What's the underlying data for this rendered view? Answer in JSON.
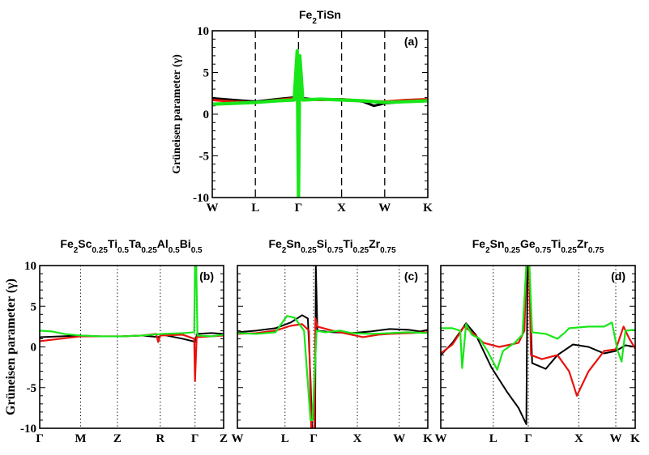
{
  "colors": {
    "black": "#000000",
    "red": "#e8120c",
    "green": "#19e619"
  },
  "chart_data": [
    {
      "type": "line",
      "panel": "(a)",
      "title": "Fe2TiSn",
      "title_parts": [
        [
          "Fe",
          ""
        ],
        [
          "2",
          "sub"
        ],
        [
          "TiSn",
          ""
        ]
      ],
      "ylabel": "Grüneisen parameter (γ)",
      "ylim": [
        -10,
        10
      ],
      "yticks": [
        "10",
        "5",
        "0",
        "-5",
        "-10"
      ],
      "xlim": [
        0,
        5
      ],
      "xticks": [
        {
          "label": "W",
          "x": 0
        },
        {
          "label": "L",
          "x": 1
        },
        {
          "label": "Γ",
          "x": 2
        },
        {
          "label": "X",
          "x": 3
        },
        {
          "label": "W",
          "x": 4
        },
        {
          "label": "K",
          "x": 5
        }
      ],
      "separators": [
        1,
        2,
        3,
        4
      ],
      "separator_style": "dashed",
      "series": [
        {
          "name": "black",
          "points": [
            [
              0,
              1.9
            ],
            [
              0.5,
              1.7
            ],
            [
              1,
              1.5
            ],
            [
              1.5,
              1.8
            ],
            [
              1.9,
              2.0
            ],
            [
              1.97,
              2.5
            ],
            [
              2.0,
              -10
            ],
            [
              2.03,
              4.6
            ],
            [
              2.1,
              1.9
            ],
            [
              2.5,
              1.7
            ],
            [
              3,
              1.8
            ],
            [
              3.5,
              1.5
            ],
            [
              3.75,
              1.0
            ],
            [
              4,
              1.3
            ],
            [
              4.5,
              1.5
            ],
            [
              5,
              1.6
            ]
          ]
        },
        {
          "name": "red",
          "points": [
            [
              0,
              1.7
            ],
            [
              0.5,
              1.5
            ],
            [
              1,
              1.4
            ],
            [
              1.5,
              1.7
            ],
            [
              1.9,
              1.9
            ],
            [
              2.0,
              2.0
            ],
            [
              2.1,
              1.8
            ],
            [
              2.5,
              1.7
            ],
            [
              3,
              1.8
            ],
            [
              3.5,
              1.6
            ],
            [
              4,
              1.5
            ],
            [
              4.5,
              1.7
            ],
            [
              5,
              1.8
            ]
          ]
        },
        {
          "name": "green",
          "points": [
            [
              0,
              1.2
            ],
            [
              0.5,
              1.3
            ],
            [
              1,
              1.4
            ],
            [
              1.5,
              1.6
            ],
            [
              1.9,
              1.7
            ],
            [
              1.97,
              7.6
            ],
            [
              2.0,
              -10
            ],
            [
              2.03,
              7.0
            ],
            [
              2.1,
              1.7
            ],
            [
              2.5,
              1.8
            ],
            [
              3,
              1.7
            ],
            [
              3.5,
              1.6
            ],
            [
              4,
              1.4
            ],
            [
              4.5,
              1.5
            ],
            [
              5,
              1.6
            ]
          ]
        }
      ]
    },
    {
      "type": "line",
      "panel": "(b)",
      "title": "Fe2Sc0.25Ti0.5Ta0.25Al0.5Bi0.5",
      "title_parts": [
        [
          "Fe",
          ""
        ],
        [
          "2",
          "sub"
        ],
        [
          "Sc",
          ""
        ],
        [
          "0.25",
          "sub"
        ],
        [
          "Ti",
          ""
        ],
        [
          "0.5",
          "sub"
        ],
        [
          "Ta",
          ""
        ],
        [
          "0.25",
          "sub"
        ],
        [
          "Al",
          ""
        ],
        [
          "0.5",
          "sub"
        ],
        [
          "Bi",
          ""
        ],
        [
          "0.5",
          "sub"
        ]
      ],
      "ylabel": "Grüneisen parameter (γ)",
      "ylim": [
        -10,
        10
      ],
      "yticks": [
        "10",
        "5",
        "0",
        "-5",
        "-10"
      ],
      "xlim": [
        0,
        4.5
      ],
      "xticks": [
        {
          "label": "Γ",
          "x": 0
        },
        {
          "label": "M",
          "x": 1
        },
        {
          "label": "Z",
          "x": 1.9
        },
        {
          "label": "R",
          "x": 2.95
        },
        {
          "label": "Γ",
          "x": 3.8
        },
        {
          "label": "Z",
          "x": 4.5
        }
      ],
      "separators": [
        1,
        1.9,
        2.95,
        3.8
      ],
      "separator_style": "dotted",
      "series": [
        {
          "name": "black",
          "points": [
            [
              0,
              1.2
            ],
            [
              0.5,
              1.3
            ],
            [
              1,
              1.4
            ],
            [
              1.5,
              1.3
            ],
            [
              2,
              1.3
            ],
            [
              2.5,
              1.4
            ],
            [
              2.9,
              1.2
            ],
            [
              3.0,
              1.5
            ],
            [
              3.5,
              1.0
            ],
            [
              3.75,
              0.7
            ],
            [
              3.8,
              0.6
            ],
            [
              3.85,
              1.6
            ],
            [
              4.2,
              1.7
            ],
            [
              4.5,
              1.6
            ]
          ]
        },
        {
          "name": "red",
          "points": [
            [
              0,
              0.7
            ],
            [
              0.5,
              1.0
            ],
            [
              1,
              1.3
            ],
            [
              1.5,
              1.3
            ],
            [
              2,
              1.3
            ],
            [
              2.5,
              1.4
            ],
            [
              2.85,
              1.6
            ],
            [
              2.9,
              0.6
            ],
            [
              2.95,
              1.4
            ],
            [
              3.5,
              1.5
            ],
            [
              3.78,
              1.0
            ],
            [
              3.8,
              -4.2
            ],
            [
              3.84,
              1.2
            ],
            [
              4.2,
              1.3
            ],
            [
              4.5,
              1.4
            ]
          ]
        },
        {
          "name": "green",
          "points": [
            [
              0,
              2.0
            ],
            [
              0.3,
              1.9
            ],
            [
              0.6,
              1.6
            ],
            [
              1,
              1.4
            ],
            [
              1.5,
              1.3
            ],
            [
              2,
              1.3
            ],
            [
              2.5,
              1.4
            ],
            [
              3,
              1.6
            ],
            [
              3.5,
              1.7
            ],
            [
              3.78,
              1.8
            ],
            [
              3.8,
              10
            ],
            [
              3.83,
              10
            ],
            [
              3.86,
              1.4
            ],
            [
              4.2,
              1.3
            ],
            [
              4.5,
              1.5
            ]
          ]
        }
      ]
    },
    {
      "type": "line",
      "panel": "(c)",
      "title": "Fe2Sn0.25Si0.75Ti0.25Zr0.75",
      "title_parts": [
        [
          "Fe",
          ""
        ],
        [
          "2",
          "sub"
        ],
        [
          "Sn",
          ""
        ],
        [
          "0.25",
          "sub"
        ],
        [
          "Si",
          ""
        ],
        [
          "0.75",
          "sub"
        ],
        [
          "Ti",
          ""
        ],
        [
          "0.25",
          "sub"
        ],
        [
          "Zr",
          ""
        ],
        [
          "0.75",
          "sub"
        ]
      ],
      "ylabel": "",
      "ylim": [
        -10,
        10
      ],
      "yticks": [],
      "xlim": [
        0,
        5
      ],
      "xticks": [
        {
          "label": "W",
          "x": 0
        },
        {
          "label": "L",
          "x": 1.25
        },
        {
          "label": "Γ",
          "x": 2.0
        },
        {
          "label": "X",
          "x": 3.15
        },
        {
          "label": "W",
          "x": 4.25
        },
        {
          "label": "K",
          "x": 5
        }
      ],
      "separators": [
        1.25,
        2.0,
        3.15,
        4.25
      ],
      "separator_style": "dotted",
      "series": [
        {
          "name": "black",
          "points": [
            [
              0,
              1.8
            ],
            [
              0.5,
              2.0
            ],
            [
              1,
              2.3
            ],
            [
              1.4,
              3.0
            ],
            [
              1.7,
              3.9
            ],
            [
              1.85,
              3.5
            ],
            [
              1.92,
              -4
            ],
            [
              1.96,
              -10
            ],
            [
              2.04,
              -10
            ],
            [
              2.06,
              10
            ],
            [
              2.1,
              2.0
            ],
            [
              2.5,
              1.8
            ],
            [
              3,
              1.7
            ],
            [
              3.5,
              1.9
            ],
            [
              4,
              2.2
            ],
            [
              4.5,
              2.1
            ],
            [
              4.8,
              1.9
            ],
            [
              5,
              2.1
            ]
          ]
        },
        {
          "name": "red",
          "points": [
            [
              0,
              1.6
            ],
            [
              0.5,
              1.7
            ],
            [
              1,
              2.0
            ],
            [
              1.4,
              2.6
            ],
            [
              1.7,
              2.8
            ],
            [
              1.88,
              2.0
            ],
            [
              1.94,
              -10
            ],
            [
              2.02,
              -10
            ],
            [
              2.05,
              3.5
            ],
            [
              2.1,
              2.5
            ],
            [
              2.5,
              2.0
            ],
            [
              3,
              1.5
            ],
            [
              3.3,
              1.2
            ],
            [
              3.7,
              1.5
            ],
            [
              4,
              1.6
            ],
            [
              4.5,
              1.7
            ],
            [
              5,
              1.8
            ]
          ]
        },
        {
          "name": "green",
          "points": [
            [
              0,
              1.7
            ],
            [
              0.5,
              1.6
            ],
            [
              1,
              1.8
            ],
            [
              1.3,
              3.8
            ],
            [
              1.5,
              3.6
            ],
            [
              1.75,
              2.0
            ],
            [
              1.92,
              -9
            ],
            [
              1.97,
              -9
            ],
            [
              2.08,
              2.0
            ],
            [
              2.3,
              1.8
            ],
            [
              2.7,
              2.0
            ],
            [
              3,
              1.7
            ],
            [
              3.5,
              1.6
            ],
            [
              4,
              1.7
            ],
            [
              4.5,
              1.8
            ],
            [
              5,
              1.7
            ]
          ]
        }
      ]
    },
    {
      "type": "line",
      "panel": "(d)",
      "title": "Fe2Sn0.25Ge0.75Ti0.25Zr0.75",
      "title_parts": [
        [
          "Fe",
          ""
        ],
        [
          "2",
          "sub"
        ],
        [
          "Sn",
          ""
        ],
        [
          "0.25",
          "sub"
        ],
        [
          "Ge",
          ""
        ],
        [
          "0.75",
          "sub"
        ],
        [
          "Ti",
          ""
        ],
        [
          "0.25",
          "sub"
        ],
        [
          "Zr",
          ""
        ],
        [
          "0.75",
          "sub"
        ]
      ],
      "ylabel": "",
      "ylim": [
        -10,
        10
      ],
      "yticks": [],
      "xlim": [
        0,
        5
      ],
      "xticks": [
        {
          "label": "W",
          "x": 0
        },
        {
          "label": "L",
          "x": 1.35
        },
        {
          "label": "Γ",
          "x": 2.25
        },
        {
          "label": "X",
          "x": 3.55
        },
        {
          "label": "W",
          "x": 4.5
        },
        {
          "label": "K",
          "x": 5
        }
      ],
      "separators": [
        1.35,
        2.25,
        3.55,
        4.5
      ],
      "separator_style": "dotted",
      "series": [
        {
          "name": "black",
          "points": [
            [
              0,
              -1.0
            ],
            [
              0.3,
              0.5
            ],
            [
              0.65,
              2.9
            ],
            [
              0.9,
              1.5
            ],
            [
              1.3,
              -2.5
            ],
            [
              1.7,
              -5.5
            ],
            [
              2.0,
              -7.5
            ],
            [
              2.2,
              -9.5
            ],
            [
              2.23,
              10
            ],
            [
              2.27,
              10
            ],
            [
              2.35,
              -2.0
            ],
            [
              2.7,
              -2.7
            ],
            [
              3.0,
              -1.0
            ],
            [
              3.4,
              0.3
            ],
            [
              3.8,
              0.0
            ],
            [
              4.2,
              -0.8
            ],
            [
              4.5,
              -0.5
            ],
            [
              4.75,
              0.2
            ],
            [
              5,
              0.0
            ]
          ]
        },
        {
          "name": "red",
          "points": [
            [
              0,
              -0.8
            ],
            [
              0.3,
              0.3
            ],
            [
              0.6,
              2.5
            ],
            [
              0.8,
              1.8
            ],
            [
              1.1,
              0.5
            ],
            [
              1.5,
              0.0
            ],
            [
              2.0,
              0.5
            ],
            [
              2.15,
              2.0
            ],
            [
              2.2,
              10
            ],
            [
              2.27,
              10
            ],
            [
              2.32,
              -1.0
            ],
            [
              2.6,
              -1.5
            ],
            [
              3.0,
              -1.0
            ],
            [
              3.3,
              -3.0
            ],
            [
              3.5,
              -6.0
            ],
            [
              3.8,
              -3.0
            ],
            [
              4.2,
              -0.5
            ],
            [
              4.5,
              -0.3
            ],
            [
              4.7,
              2.5
            ],
            [
              4.85,
              1.0
            ],
            [
              5,
              -0.2
            ]
          ]
        },
        {
          "name": "green",
          "points": [
            [
              0,
              2.3
            ],
            [
              0.3,
              2.3
            ],
            [
              0.5,
              2.0
            ],
            [
              0.55,
              -2.6
            ],
            [
              0.65,
              2.8
            ],
            [
              0.8,
              1.5
            ],
            [
              1.0,
              1.0
            ],
            [
              1.2,
              -0.5
            ],
            [
              1.45,
              -2.8
            ],
            [
              1.6,
              -0.5
            ],
            [
              1.9,
              0.5
            ],
            [
              2.1,
              1.5
            ],
            [
              2.2,
              10
            ],
            [
              2.28,
              10
            ],
            [
              2.35,
              1.8
            ],
            [
              2.7,
              1.6
            ],
            [
              3.0,
              1.0
            ],
            [
              3.2,
              1.8
            ],
            [
              3.3,
              2.3
            ],
            [
              3.8,
              2.5
            ],
            [
              4.2,
              2.5
            ],
            [
              4.4,
              3.0
            ],
            [
              4.55,
              -0.5
            ],
            [
              4.65,
              -1.8
            ],
            [
              4.75,
              2.0
            ],
            [
              5,
              2.1
            ]
          ]
        }
      ]
    }
  ]
}
